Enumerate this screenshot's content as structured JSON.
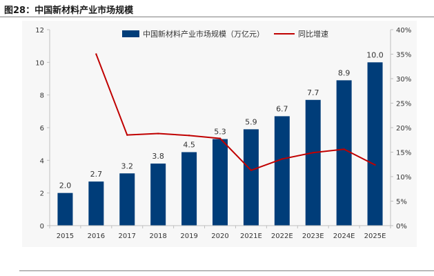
{
  "figure": {
    "title": "图28：中国新材料产业市场规模"
  },
  "colors": {
    "bar": "#003d79",
    "line": "#c00000",
    "axis": "#bfbfbf",
    "plot_bg": "#f7f7f7"
  },
  "chart_data": {
    "type": "bar",
    "categories": [
      "2015",
      "2016",
      "2017",
      "2018",
      "2019",
      "2020",
      "2021E",
      "2022E",
      "2023E",
      "2024E",
      "2025E"
    ],
    "series": [
      {
        "name": "中国新材料产业市场规模（万亿元）",
        "type": "bar",
        "axis": "left",
        "values": [
          2.0,
          2.7,
          3.2,
          3.8,
          4.5,
          5.3,
          5.9,
          6.7,
          7.7,
          8.9,
          10.0
        ],
        "labels": [
          "2.0",
          "2.7",
          "3.2",
          "3.8",
          "4.5",
          "5.3",
          "5.9",
          "6.7",
          "7.7",
          "8.9",
          "10.0"
        ]
      },
      {
        "name": "同比增速",
        "type": "line",
        "axis": "right",
        "values": [
          null,
          35.0,
          18.5,
          18.8,
          18.4,
          17.8,
          11.3,
          13.6,
          14.9,
          15.6,
          12.4
        ]
      }
    ],
    "ylim": [
      0,
      12
    ],
    "y_ticks": [
      "0",
      "2",
      "4",
      "6",
      "8",
      "10",
      "12"
    ],
    "y2lim": [
      0,
      40
    ],
    "y2_ticks": [
      "0%",
      "5%",
      "10%",
      "15%",
      "20%",
      "25%",
      "30%",
      "35%",
      "40%"
    ],
    "legend_position": "top-center",
    "grid": false
  }
}
